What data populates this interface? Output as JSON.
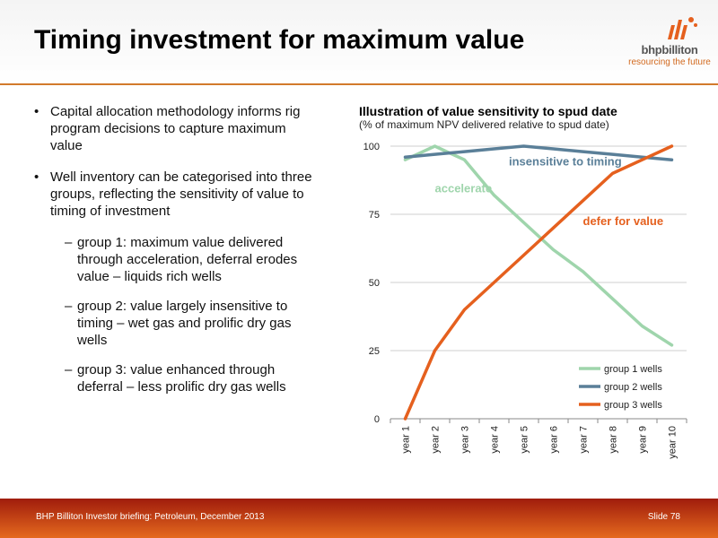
{
  "slide": {
    "title": "Timing investment for maximum value",
    "logo": {
      "name": "bhpbilliton",
      "tagline": "resourcing the future"
    }
  },
  "bullets": [
    {
      "text": "Capital allocation methodology informs rig program decisions to capture maximum value"
    },
    {
      "text": "Well inventory can be categorised into three groups, reflecting the sensitivity of value to timing of investment",
      "sub": [
        "group 1: maximum value delivered through acceleration, deferral erodes value – liquids rich wells",
        "group 2: value largely insensitive to timing – wet gas and prolific dry gas wells",
        "group 3: value enhanced through deferral – less prolific dry gas wells"
      ]
    }
  ],
  "chart_data": {
    "type": "line",
    "title": "Illustration of value sensitivity to spud date",
    "subtitle": "(% of maximum NPV delivered relative to spud date)",
    "xlabel": "",
    "ylabel": "",
    "categories": [
      "year 1",
      "year 2",
      "year 3",
      "year 4",
      "year 5",
      "year 6",
      "year 7",
      "year 8",
      "year 9",
      "year 10"
    ],
    "ylim": [
      0,
      100
    ],
    "yticks": [
      0,
      25,
      50,
      75,
      100
    ],
    "grid": "horizontal",
    "legend_position": "bottom-right",
    "series": [
      {
        "name": "group 1 wells",
        "color": "#9fd5ac",
        "values": [
          95,
          100,
          95,
          82,
          72,
          62,
          54,
          44,
          34,
          27
        ]
      },
      {
        "name": "group 2 wells",
        "color": "#5a7f98",
        "values": [
          96,
          97,
          98,
          99,
          100,
          99,
          98,
          97,
          96,
          95
        ]
      },
      {
        "name": "group 3 wells",
        "color": "#e5601e",
        "values": [
          0,
          25,
          40,
          50,
          60,
          70,
          80,
          90,
          95,
          100
        ]
      }
    ],
    "annotations": [
      {
        "text": "accelerate",
        "color": "#9fd5ac",
        "x": 1.5,
        "y": 83
      },
      {
        "text": "insensitive to timing",
        "color": "#5a7f98",
        "x": 4.0,
        "y": 93
      },
      {
        "text": "defer for value",
        "color": "#e5601e",
        "x": 6.5,
        "y": 71
      }
    ]
  },
  "footer": {
    "left": "BHP Billiton Investor briefing: Petroleum, December 2013",
    "right": "Slide 78"
  }
}
